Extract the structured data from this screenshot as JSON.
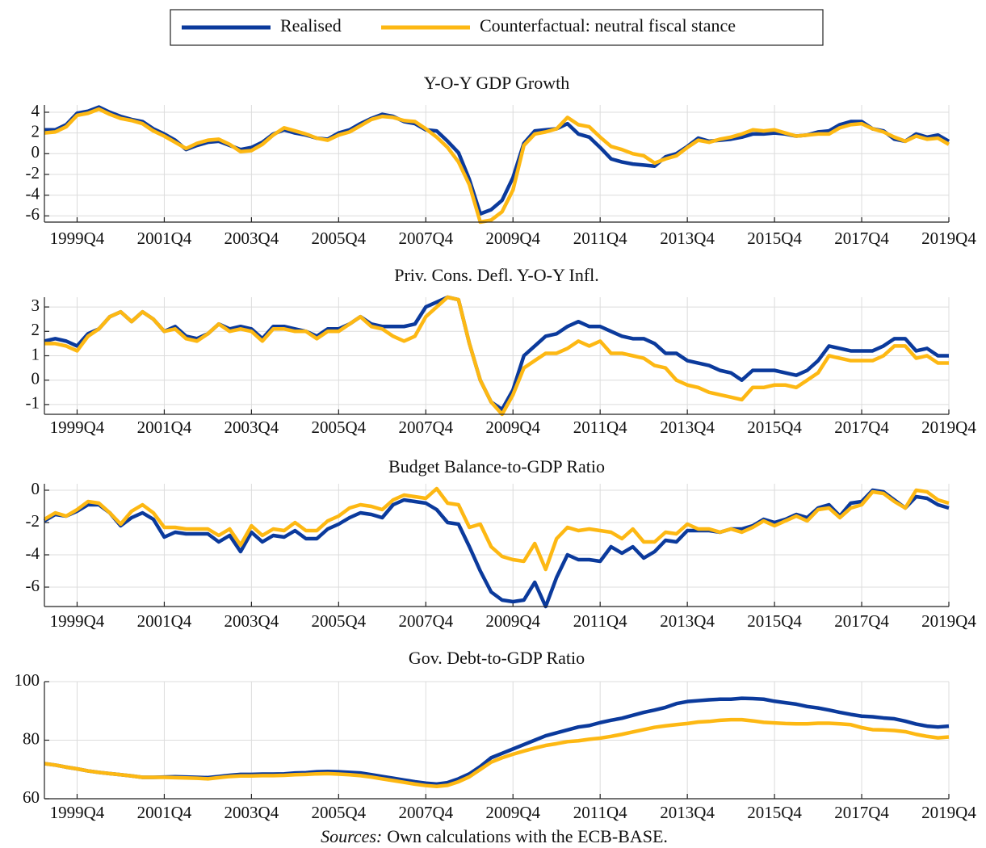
{
  "chart_data": {
    "type": "line",
    "legend_position": "top",
    "grid": true,
    "legend": [
      {
        "name": "Realised",
        "color": "#0b3a9c"
      },
      {
        "name": "Counterfactual: neutral fiscal stance",
        "color": "#fdb813"
      }
    ],
    "x": [
      1999,
      1999.25,
      1999.5,
      1999.75,
      2000,
      2000.25,
      2000.5,
      2000.75,
      2001,
      2001.25,
      2001.5,
      2001.75,
      2002,
      2002.25,
      2002.5,
      2002.75,
      2003,
      2003.25,
      2003.5,
      2003.75,
      2004,
      2004.25,
      2004.5,
      2004.75,
      2005,
      2005.25,
      2005.5,
      2005.75,
      2006,
      2006.25,
      2006.5,
      2006.75,
      2007,
      2007.25,
      2007.5,
      2007.75,
      2008,
      2008.25,
      2008.5,
      2008.75,
      2009,
      2009.25,
      2009.5,
      2009.75,
      2010,
      2010.25,
      2010.5,
      2010.75,
      2011,
      2011.25,
      2011.5,
      2011.75,
      2012,
      2012.25,
      2012.5,
      2012.75,
      2013,
      2013.25,
      2013.5,
      2013.75,
      2014,
      2014.25,
      2014.5,
      2014.75,
      2015,
      2015.25,
      2015.5,
      2015.75,
      2016,
      2016.25,
      2016.5,
      2016.75,
      2017,
      2017.25,
      2017.5,
      2017.75,
      2018,
      2018.25,
      2018.5,
      2018.75,
      2019,
      2019.25,
      2019.5,
      2019.75
    ],
    "xlim": [
      1999,
      2019.75
    ],
    "xticks": [
      {
        "value": 1999.75,
        "label": "1999Q4"
      },
      {
        "value": 2001.75,
        "label": "2001Q4"
      },
      {
        "value": 2003.75,
        "label": "2003Q4"
      },
      {
        "value": 2005.75,
        "label": "2005Q4"
      },
      {
        "value": 2007.75,
        "label": "2007Q4"
      },
      {
        "value": 2009.75,
        "label": "2009Q4"
      },
      {
        "value": 2011.75,
        "label": "2011Q4"
      },
      {
        "value": 2013.75,
        "label": "2013Q4"
      },
      {
        "value": 2015.75,
        "label": "2015Q4"
      },
      {
        "value": 2017.75,
        "label": "2017Q4"
      },
      {
        "value": 2019.75,
        "label": "2019Q4"
      }
    ],
    "panels": [
      {
        "title": "Y-O-Y GDP Growth",
        "ylim": [
          -6.6,
          4.7
        ],
        "yticks": [
          -6,
          -4,
          -2,
          0,
          2,
          4
        ],
        "series": [
          {
            "values": [
              2.3,
              2.3,
              2.8,
              3.9,
              4.1,
              4.5,
              4.0,
              3.6,
              3.3,
              3.1,
              2.4,
              1.9,
              1.3,
              0.4,
              0.8,
              1.1,
              1.2,
              0.8,
              0.4,
              0.6,
              1.1,
              1.9,
              2.3,
              2.0,
              1.8,
              1.5,
              1.4,
              2.0,
              2.3,
              2.9,
              3.4,
              3.8,
              3.6,
              3.1,
              2.9,
              2.3,
              2.2,
              1.2,
              0.1,
              -2.5,
              -5.8,
              -5.4,
              -4.5,
              -2.3,
              1.0,
              2.2,
              2.3,
              2.4,
              2.9,
              1.9,
              1.6,
              0.6,
              -0.5,
              -0.8,
              -1.0,
              -1.1,
              -1.2,
              -0.3,
              0.0,
              0.7,
              1.5,
              1.2,
              1.3,
              1.4,
              1.6,
              1.9,
              1.9,
              2.0,
              1.9,
              1.7,
              1.8,
              2.1,
              2.2,
              2.8,
              3.1,
              3.1,
              2.4,
              2.2,
              1.4,
              1.2,
              1.9,
              1.6,
              1.8,
              1.2
            ]
          },
          {
            "values": [
              2.0,
              2.1,
              2.6,
              3.7,
              3.9,
              4.3,
              3.8,
              3.4,
              3.2,
              2.9,
              2.2,
              1.7,
              1.1,
              0.5,
              1.0,
              1.3,
              1.4,
              0.9,
              0.2,
              0.3,
              0.9,
              1.8,
              2.5,
              2.2,
              1.9,
              1.5,
              1.3,
              1.8,
              2.1,
              2.7,
              3.3,
              3.6,
              3.5,
              3.2,
              3.1,
              2.4,
              1.6,
              0.6,
              -0.8,
              -3.0,
              -6.6,
              -6.4,
              -5.6,
              -3.5,
              0.8,
              1.9,
              2.1,
              2.4,
              3.5,
              2.8,
              2.6,
              1.6,
              0.7,
              0.4,
              0.0,
              -0.2,
              -0.9,
              -0.5,
              -0.2,
              0.6,
              1.3,
              1.1,
              1.4,
              1.6,
              1.9,
              2.3,
              2.2,
              2.3,
              2.0,
              1.7,
              1.8,
              1.9,
              1.9,
              2.5,
              2.8,
              2.9,
              2.4,
              2.1,
              1.6,
              1.2,
              1.7,
              1.4,
              1.5,
              0.9
            ]
          }
        ]
      },
      {
        "title": "Priv. Cons. Defl. Y-O-Y Infl.",
        "ylim": [
          -1.4,
          3.4
        ],
        "yticks": [
          -1,
          0,
          1,
          2,
          3
        ],
        "series": [
          {
            "values": [
              1.6,
              1.7,
              1.6,
              1.4,
              1.9,
              2.1,
              2.6,
              2.8,
              2.4,
              2.8,
              2.5,
              2.0,
              2.2,
              1.8,
              1.7,
              1.9,
              2.3,
              2.1,
              2.2,
              2.1,
              1.7,
              2.2,
              2.2,
              2.1,
              2.0,
              1.8,
              2.1,
              2.1,
              2.3,
              2.6,
              2.3,
              2.2,
              2.2,
              2.2,
              2.3,
              3.0,
              3.2,
              3.4,
              3.3,
              1.5,
              0.0,
              -0.9,
              -1.2,
              -0.4,
              1.0,
              1.4,
              1.8,
              1.9,
              2.2,
              2.4,
              2.2,
              2.2,
              2.0,
              1.8,
              1.7,
              1.7,
              1.5,
              1.1,
              1.1,
              0.8,
              0.7,
              0.6,
              0.4,
              0.3,
              0.0,
              0.4,
              0.4,
              0.4,
              0.3,
              0.2,
              0.4,
              0.8,
              1.4,
              1.3,
              1.2,
              1.2,
              1.2,
              1.4,
              1.7,
              1.7,
              1.2,
              1.3,
              1.0,
              1.0
            ]
          },
          {
            "values": [
              1.5,
              1.5,
              1.4,
              1.2,
              1.8,
              2.1,
              2.6,
              2.8,
              2.4,
              2.8,
              2.5,
              2.0,
              2.1,
              1.7,
              1.6,
              1.9,
              2.3,
              2.0,
              2.1,
              2.0,
              1.6,
              2.1,
              2.1,
              2.0,
              2.0,
              1.7,
              2.0,
              2.0,
              2.3,
              2.6,
              2.2,
              2.1,
              1.8,
              1.6,
              1.8,
              2.6,
              3.0,
              3.4,
              3.3,
              1.5,
              0.0,
              -0.9,
              -1.4,
              -0.6,
              0.5,
              0.8,
              1.1,
              1.1,
              1.3,
              1.6,
              1.4,
              1.6,
              1.1,
              1.1,
              1.0,
              0.9,
              0.6,
              0.5,
              0.0,
              -0.2,
              -0.3,
              -0.5,
              -0.6,
              -0.7,
              -0.8,
              -0.3,
              -0.3,
              -0.2,
              -0.2,
              -0.3,
              0.0,
              0.3,
              1.0,
              0.9,
              0.8,
              0.8,
              0.8,
              1.0,
              1.4,
              1.4,
              0.9,
              1.0,
              0.7,
              0.7
            ]
          }
        ]
      },
      {
        "title": "Budget Balance-to-GDP Ratio",
        "ylim": [
          -7.2,
          0.4
        ],
        "yticks": [
          -6,
          -4,
          -2,
          0
        ],
        "series": [
          {
            "values": [
              -1.9,
              -1.5,
              -1.6,
              -1.3,
              -0.9,
              -0.9,
              -1.4,
              -2.2,
              -1.7,
              -1.4,
              -1.8,
              -2.9,
              -2.6,
              -2.7,
              -2.7,
              -2.7,
              -3.2,
              -2.8,
              -3.8,
              -2.6,
              -3.2,
              -2.8,
              -2.9,
              -2.5,
              -3.0,
              -3.0,
              -2.4,
              -2.1,
              -1.7,
              -1.4,
              -1.5,
              -1.7,
              -0.9,
              -0.6,
              -0.7,
              -0.8,
              -1.2,
              -2.0,
              -2.1,
              -3.5,
              -5.0,
              -6.3,
              -6.8,
              -6.9,
              -6.8,
              -5.7,
              -7.2,
              -5.4,
              -4.0,
              -4.3,
              -4.3,
              -4.4,
              -3.5,
              -3.9,
              -3.5,
              -4.2,
              -3.8,
              -3.1,
              -3.2,
              -2.5,
              -2.5,
              -2.5,
              -2.6,
              -2.4,
              -2.4,
              -2.2,
              -1.8,
              -2.0,
              -1.8,
              -1.5,
              -1.7,
              -1.1,
              -0.9,
              -1.6,
              -0.8,
              -0.7,
              0.0,
              -0.1,
              -0.6,
              -1.1,
              -0.4,
              -0.5,
              -0.9,
              -1.1
            ]
          },
          {
            "values": [
              -1.8,
              -1.4,
              -1.6,
              -1.2,
              -0.7,
              -0.8,
              -1.4,
              -2.1,
              -1.3,
              -0.9,
              -1.4,
              -2.3,
              -2.3,
              -2.4,
              -2.4,
              -2.4,
              -2.8,
              -2.4,
              -3.4,
              -2.2,
              -2.8,
              -2.4,
              -2.5,
              -2.0,
              -2.5,
              -2.5,
              -1.9,
              -1.6,
              -1.1,
              -0.9,
              -1.0,
              -1.2,
              -0.6,
              -0.3,
              -0.4,
              -0.5,
              0.1,
              -0.8,
              -0.9,
              -2.3,
              -2.1,
              -3.5,
              -4.1,
              -4.3,
              -4.4,
              -3.3,
              -4.9,
              -3.0,
              -2.3,
              -2.5,
              -2.4,
              -2.5,
              -2.6,
              -3.0,
              -2.4,
              -3.2,
              -3.2,
              -2.6,
              -2.7,
              -2.1,
              -2.4,
              -2.4,
              -2.6,
              -2.4,
              -2.6,
              -2.3,
              -1.9,
              -2.2,
              -1.9,
              -1.6,
              -1.9,
              -1.2,
              -1.1,
              -1.7,
              -1.1,
              -0.9,
              -0.1,
              -0.2,
              -0.7,
              -1.1,
              0.0,
              -0.1,
              -0.6,
              -0.8
            ]
          }
        ]
      },
      {
        "title": "Gov. Debt-to-GDP Ratio",
        "ylim": [
          60,
          100
        ],
        "yticks": [
          60,
          80,
          100
        ],
        "series": [
          {
            "values": [
              72,
              71.5,
              70.8,
              70.2,
              69.5,
              69,
              68.6,
              68.2,
              67.8,
              67.3,
              67.3,
              67.4,
              67.5,
              67.4,
              67.3,
              67.2,
              67.6,
              68,
              68.3,
              68.3,
              68.4,
              68.4,
              68.5,
              68.8,
              68.9,
              69.2,
              69.3,
              69.2,
              69,
              68.8,
              68.2,
              67.6,
              67,
              66.4,
              65.8,
              65.3,
              65,
              65.5,
              66.8,
              68.5,
              71,
              74,
              75.5,
              77,
              78.5,
              80,
              81.5,
              82.5,
              83.5,
              84.5,
              85,
              86,
              86.8,
              87.5,
              88.5,
              89.5,
              90.3,
              91.2,
              92.5,
              93.2,
              93.5,
              93.8,
              94,
              94,
              94.3,
              94.2,
              94,
              93.3,
              92.8,
              92.3,
              91.5,
              91,
              90.3,
              89.5,
              88.8,
              88.2,
              88,
              87.6,
              87.3,
              86.5,
              85.5,
              84.8,
              84.5,
              84.8
            ]
          },
          {
            "values": [
              72,
              71.5,
              70.8,
              70.2,
              69.5,
              69,
              68.6,
              68.2,
              67.8,
              67.3,
              67.3,
              67.3,
              67.2,
              67.1,
              67,
              66.8,
              67.2,
              67.6,
              67.8,
              67.8,
              67.9,
              67.9,
              68,
              68.2,
              68.3,
              68.5,
              68.6,
              68.4,
              68.2,
              67.9,
              67.4,
              66.8,
              66.2,
              65.6,
              65,
              64.5,
              64.2,
              64.6,
              65.8,
              67.5,
              70,
              72.5,
              74,
              75.2,
              76.3,
              77.3,
              78.2,
              78.8,
              79.5,
              79.8,
              80.3,
              80.7,
              81.3,
              82,
              82.8,
              83.6,
              84.4,
              84.9,
              85.3,
              85.7,
              86.2,
              86.4,
              86.8,
              87,
              87,
              86.6,
              86.1,
              85.9,
              85.7,
              85.6,
              85.6,
              85.8,
              85.8,
              85.6,
              85.3,
              84.3,
              83.6,
              83.5,
              83.3,
              82.9,
              82,
              81.3,
              80.8,
              81.1
            ]
          }
        ]
      }
    ],
    "source_label": "Sources:",
    "source_text": "Own calculations with the ECB-BASE."
  }
}
